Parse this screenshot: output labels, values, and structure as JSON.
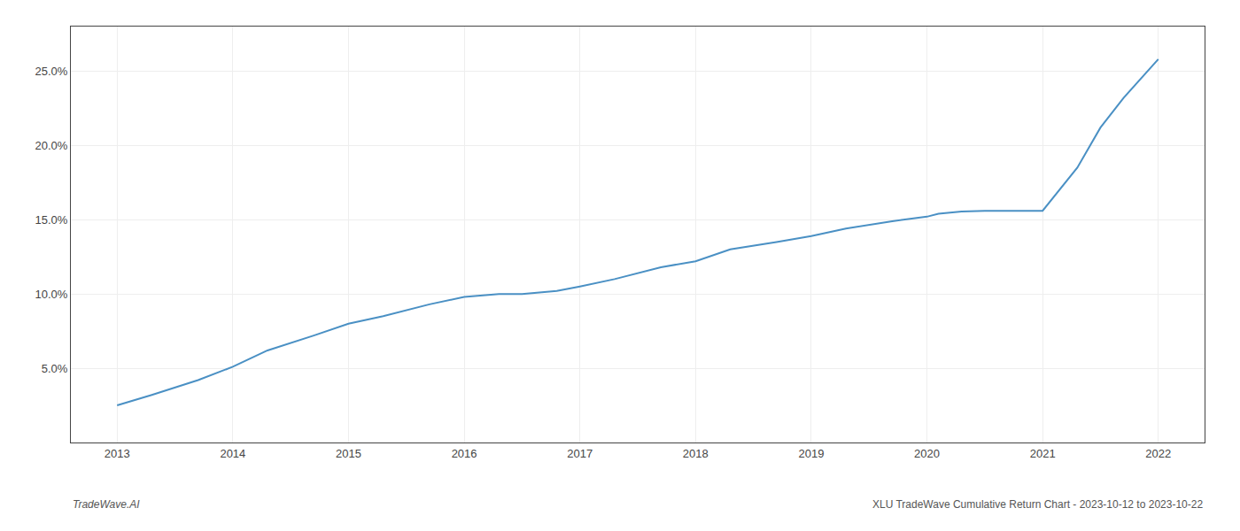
{
  "chart_data": {
    "type": "line",
    "x": [
      2013.0,
      2013.3,
      2013.7,
      2014.0,
      2014.3,
      2014.7,
      2015.0,
      2015.3,
      2015.7,
      2016.0,
      2016.3,
      2016.5,
      2016.8,
      2017.0,
      2017.3,
      2017.7,
      2018.0,
      2018.3,
      2018.7,
      2019.0,
      2019.3,
      2019.7,
      2020.0,
      2020.1,
      2020.3,
      2020.5,
      2020.7,
      2021.0,
      2021.3,
      2021.5,
      2021.7,
      2022.0
    ],
    "values": [
      2.5,
      3.2,
      4.2,
      5.1,
      6.2,
      7.2,
      8.0,
      8.5,
      9.3,
      9.8,
      10.0,
      10.0,
      10.2,
      10.5,
      11.0,
      11.8,
      12.2,
      13.0,
      13.5,
      13.9,
      14.4,
      14.9,
      15.2,
      15.4,
      15.55,
      15.6,
      15.6,
      15.6,
      18.5,
      21.2,
      23.2,
      25.8
    ],
    "color": "#4a90c4",
    "xlim": [
      2012.6,
      2022.4
    ],
    "xticks": [
      2013,
      2014,
      2015,
      2016,
      2017,
      2018,
      2019,
      2020,
      2021,
      2022
    ],
    "ylim": [
      0,
      28
    ],
    "yticks": [
      {
        "value": 5.0,
        "label": "5.0%"
      },
      {
        "value": 10.0,
        "label": "10.0%"
      },
      {
        "value": 15.0,
        "label": "15.0%"
      },
      {
        "value": 20.0,
        "label": "20.0%"
      },
      {
        "value": 25.0,
        "label": "25.0%"
      }
    ],
    "grid": true,
    "annotations": [
      "TradeWave.AI",
      "XLU TradeWave Cumulative Return Chart - 2023-10-12 to 2023-10-22"
    ]
  }
}
